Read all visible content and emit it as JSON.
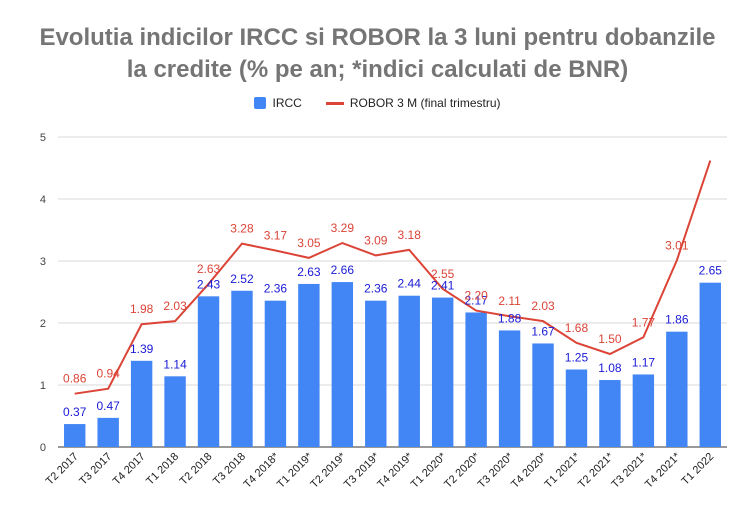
{
  "chart_data": {
    "type": "bar",
    "title_line1": "Evolutia indicilor IRCC si ROBOR la 3 luni pentru dobanzile",
    "title_line2": "la credite (% pe an; *indici calculati de BNR)",
    "categories": [
      "T2 2017",
      "T3 2017",
      "T4 2017",
      "T1 2018",
      "T2 2018",
      "T3 2018",
      "T4 2018*",
      "T1 2019*",
      "T2 2019*",
      "T3 2019*",
      "T4 2019*",
      "T1 2020*",
      "T2 2020*",
      "T3 2020*",
      "T4 2020*",
      "T1 2021*",
      "T2 2021*",
      "T3 2021*",
      "T4 2021*",
      "T1 2022"
    ],
    "series": [
      {
        "name": "IRCC",
        "type": "bar",
        "color": "#4285f4",
        "values": [
          0.37,
          0.47,
          1.39,
          1.14,
          2.43,
          2.52,
          2.36,
          2.63,
          2.66,
          2.36,
          2.44,
          2.41,
          2.17,
          1.88,
          1.67,
          1.25,
          1.08,
          1.17,
          1.86,
          2.65
        ],
        "labels": [
          "0.37",
          "0.47",
          "1.39",
          "1.14",
          "2.43",
          "2.52",
          "2.36",
          "2.63",
          "2.66",
          "2.36",
          "2.44",
          "2.41",
          "2.17",
          "1.88",
          "1.67",
          "1.25",
          "1.08",
          "1.17",
          "1.86",
          "2.65"
        ]
      },
      {
        "name": "ROBOR 3 M (final trimestru)",
        "type": "line",
        "color": "#db4437",
        "values": [
          0.86,
          0.94,
          1.98,
          2.03,
          2.63,
          3.28,
          3.17,
          3.05,
          3.29,
          3.09,
          3.18,
          2.55,
          2.2,
          2.11,
          2.03,
          1.68,
          1.5,
          1.77,
          3.01,
          4.62
        ],
        "labels": [
          "0.86",
          "0.94",
          "1.98",
          "2.03",
          "2.63",
          "3.28",
          "3.17",
          "3.05",
          "3.29",
          "3.09",
          "3.18",
          "2.55",
          "2.20",
          "2.11",
          "2.03",
          "1.68",
          "1.50",
          "1.77",
          "3.01",
          ""
        ]
      }
    ],
    "yticks": [
      "0",
      "1",
      "2",
      "3",
      "4",
      "5"
    ],
    "ylim": [
      0,
      5
    ],
    "grid": true,
    "legend_position": "top"
  }
}
